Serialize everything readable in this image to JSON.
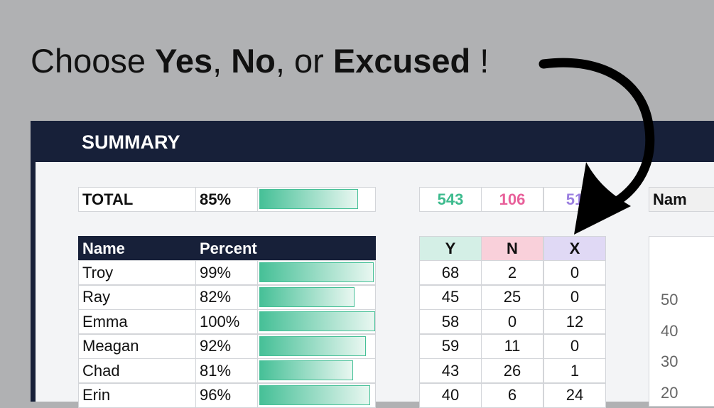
{
  "headline": {
    "parts": [
      "Choose ",
      "Yes",
      ", ",
      "No",
      ", or ",
      "Excused",
      " !"
    ]
  },
  "summary": {
    "title": "SUMMARY",
    "total": {
      "label": "TOTAL",
      "percent": "85%",
      "yes": "543",
      "no": "106",
      "excused": "51"
    },
    "table": {
      "header": {
        "name": "Name",
        "percent": "Percent",
        "yes": "Y",
        "no": "N",
        "excused": "X"
      },
      "rows": [
        {
          "name": "Troy",
          "percent": "99%",
          "yes": "68",
          "no": "2",
          "excused": "0"
        },
        {
          "name": "Ray",
          "percent": "82%",
          "yes": "45",
          "no": "25",
          "excused": "0"
        },
        {
          "name": "Emma",
          "percent": "100%",
          "yes": "58",
          "no": "0",
          "excused": "12"
        },
        {
          "name": "Meagan",
          "percent": "92%",
          "yes": "59",
          "no": "11",
          "excused": "0"
        },
        {
          "name": "Chad",
          "percent": "81%",
          "yes": "43",
          "no": "26",
          "excused": "1"
        },
        {
          "name": "Erin",
          "percent": "96%",
          "yes": "40",
          "no": "6",
          "excused": "24"
        }
      ]
    },
    "side_panel": {
      "label": "Nam",
      "axis_labels": [
        "50",
        "40",
        "30",
        "20"
      ]
    }
  }
}
